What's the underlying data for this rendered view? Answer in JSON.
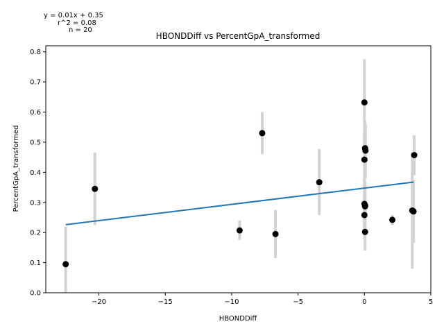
{
  "chart_data": {
    "type": "scatter",
    "title": "HBONDDiff vs PercentGpA_transformed",
    "xlabel": "HBONDDiff",
    "ylabel": "PercentGpA_transformed",
    "xlim": [
      -24,
      5
    ],
    "ylim": [
      0,
      0.82
    ],
    "xticks": [
      -20,
      -15,
      -10,
      -5,
      0,
      5
    ],
    "xtick_labels": [
      "−20",
      "−15",
      "−10",
      "−5",
      "0",
      "5"
    ],
    "yticks": [
      0.0,
      0.1,
      0.2,
      0.3,
      0.4,
      0.5,
      0.6,
      0.7,
      0.8
    ],
    "ytick_labels": [
      "0.0",
      "0.1",
      "0.2",
      "0.3",
      "0.4",
      "0.5",
      "0.6",
      "0.7",
      "0.8"
    ],
    "grid": false,
    "annotations": [
      "y = 0.01x + 0.35",
      "r^2 = 0.08",
      "n = 20"
    ],
    "fit_line": {
      "slope": 0.0054,
      "intercept": 0.3475,
      "x_range": [
        -22.5,
        3.7
      ],
      "color": "#1f77b4"
    },
    "point_color": "#000000",
    "errorbar_color": "#d3d3d3",
    "points": [
      {
        "x": -22.5,
        "y": 0.095,
        "ylo": 0.0,
        "yhi": 0.22
      },
      {
        "x": -20.3,
        "y": 0.345,
        "ylo": 0.225,
        "yhi": 0.465
      },
      {
        "x": -9.4,
        "y": 0.207,
        "ylo": 0.175,
        "yhi": 0.24
      },
      {
        "x": -7.7,
        "y": 0.53,
        "ylo": 0.46,
        "yhi": 0.6
      },
      {
        "x": -6.7,
        "y": 0.195,
        "ylo": 0.115,
        "yhi": 0.275
      },
      {
        "x": -3.4,
        "y": 0.367,
        "ylo": 0.258,
        "yhi": 0.477
      },
      {
        "x": 0.0,
        "y": 0.632,
        "ylo": 0.49,
        "yhi": 0.775
      },
      {
        "x": 0.05,
        "y": 0.48,
        "ylo": 0.39,
        "yhi": 0.57
      },
      {
        "x": 0.08,
        "y": 0.472,
        "ylo": 0.38,
        "yhi": 0.56
      },
      {
        "x": 0.0,
        "y": 0.442,
        "ylo": 0.35,
        "yhi": 0.53
      },
      {
        "x": 0.0,
        "y": 0.295,
        "ylo": 0.21,
        "yhi": 0.38
      },
      {
        "x": 0.05,
        "y": 0.287,
        "ylo": 0.2,
        "yhi": 0.37
      },
      {
        "x": 0.0,
        "y": 0.258,
        "ylo": 0.18,
        "yhi": 0.34
      },
      {
        "x": 0.05,
        "y": 0.202,
        "ylo": 0.14,
        "yhi": 0.265
      },
      {
        "x": 2.1,
        "y": 0.242,
        "ylo": 0.225,
        "yhi": 0.258
      },
      {
        "x": 3.6,
        "y": 0.273,
        "ylo": 0.08,
        "yhi": 0.466
      },
      {
        "x": 3.7,
        "y": 0.27,
        "ylo": 0.165,
        "yhi": 0.375
      },
      {
        "x": 3.75,
        "y": 0.457,
        "ylo": 0.39,
        "yhi": 0.523
      },
      {
        "x": 3.65,
        "y": 0.272,
        "ylo": 0.2,
        "yhi": 0.345
      },
      {
        "x": 0.05,
        "y": 0.29,
        "ylo": 0.22,
        "yhi": 0.36
      }
    ]
  }
}
